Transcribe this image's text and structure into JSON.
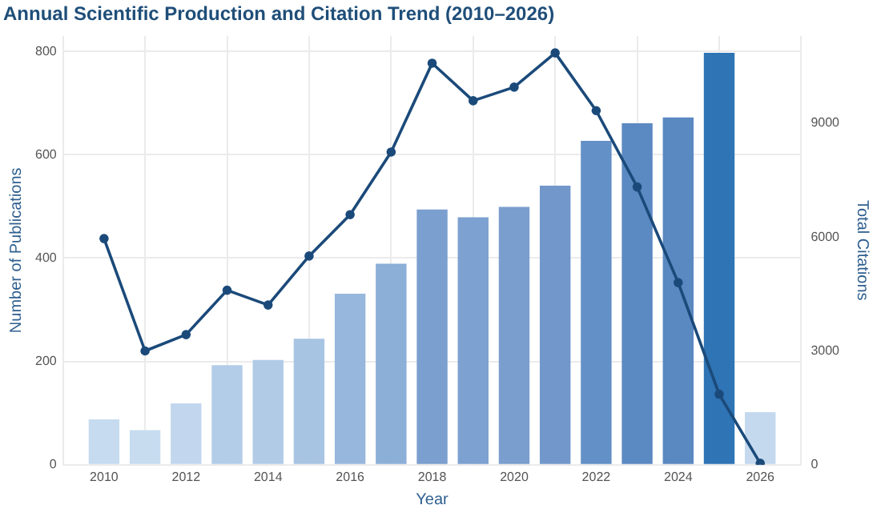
{
  "chart_data": {
    "type": "bar",
    "title": "Annual Scientific Production and Citation Trend (2010–2026)",
    "xlabel": "Year",
    "ylabel": "Number of Publications",
    "y2label": "Total Citations",
    "x": [
      2010,
      2011,
      2012,
      2013,
      2014,
      2015,
      2016,
      2017,
      2018,
      2019,
      2020,
      2021,
      2022,
      2023,
      2024,
      2025,
      2026
    ],
    "xlim": [
      2009,
      2027
    ],
    "xticks": [
      2010,
      2012,
      2014,
      2016,
      2018,
      2020,
      2022,
      2024,
      2026
    ],
    "ylim": [
      0,
      830
    ],
    "yticks": [
      0,
      200,
      400,
      600,
      800
    ],
    "y2lim": [
      0,
      11300
    ],
    "y2ticks": [
      0,
      3000,
      6000,
      9000
    ],
    "series": [
      {
        "colors": [
          "#c6dbef",
          "#c8dcf0",
          "#c2d7ee",
          "#b3cce8",
          "#b1cbe7",
          "#a8c4e3",
          "#97b7dc",
          "#8cafd8",
          "#7b9fcf",
          "#7da1d0",
          "#7a9ece",
          "#7297cb",
          "#6390c6",
          "#5b89c2",
          "#5a88c1",
          "#2f74b5",
          "#c4d9ee"
        ],
        "values": [
          88,
          67,
          119,
          193,
          203,
          244,
          331,
          389,
          494,
          479,
          499,
          540,
          627,
          661,
          672,
          797,
          102
        ]
      },
      {
        "type": "line",
        "axis": "y2",
        "color": "#1b4a7a",
        "marker": "circle",
        "values": [
          5960,
          3000,
          3430,
          4600,
          4210,
          5500,
          6590,
          8240,
          10580,
          9590,
          9950,
          10850,
          9330,
          7320,
          4800,
          1860,
          40
        ]
      }
    ],
    "grid": true,
    "legend": false
  }
}
